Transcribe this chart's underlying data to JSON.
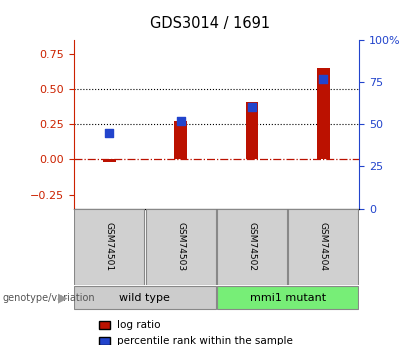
{
  "title": "GDS3014 / 1691",
  "samples": [
    "GSM74501",
    "GSM74503",
    "GSM74502",
    "GSM74504"
  ],
  "log_ratio": [
    -0.02,
    0.27,
    0.41,
    0.65
  ],
  "percentile_rank": [
    45,
    52,
    60,
    77
  ],
  "groups": [
    {
      "label": "wild type",
      "samples": [
        0,
        1
      ],
      "color": "#cccccc"
    },
    {
      "label": "mmi1 mutant",
      "samples": [
        2,
        3
      ],
      "color": "#77ee77"
    }
  ],
  "left_ylim": [
    -0.35,
    0.85
  ],
  "right_ylim": [
    0,
    100
  ],
  "left_yticks": [
    -0.25,
    0,
    0.25,
    0.5,
    0.75
  ],
  "right_yticks": [
    0,
    25,
    50,
    75,
    100
  ],
  "right_yticklabels": [
    "0",
    "25",
    "50",
    "75",
    "100%"
  ],
  "hlines_dotted": [
    0.25,
    0.5
  ],
  "hline_dashed": 0.0,
  "bar_color": "#bb1100",
  "dot_color": "#2244cc",
  "bar_width": 0.18,
  "dot_size": 40,
  "left_tick_color": "#cc2200",
  "right_tick_color": "#2244cc",
  "legend_log_ratio_label": "log ratio",
  "legend_percentile_label": "percentile rank within the sample",
  "genotype_label": "genotype/variation",
  "sample_box_color": "#d0d0d0",
  "wild_type_color": "#cccccc",
  "mmi1_color": "#77ee77"
}
